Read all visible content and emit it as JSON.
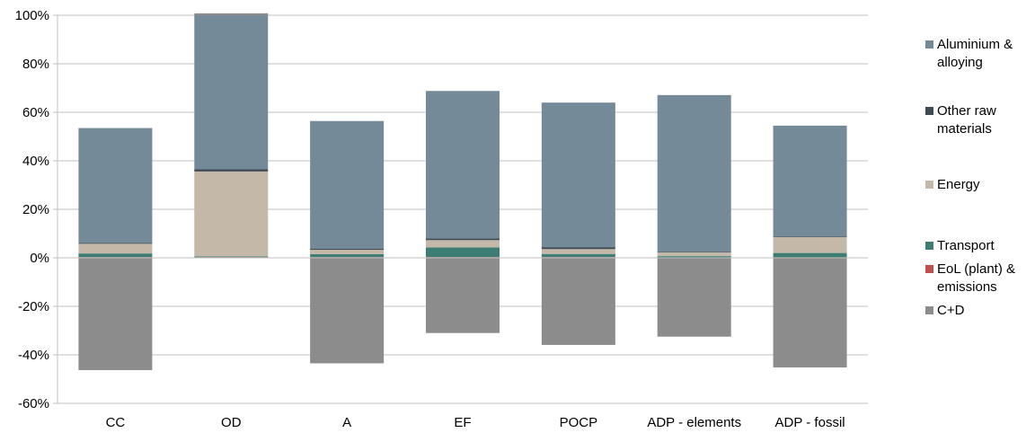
{
  "chart_data": {
    "type": "bar",
    "stacked": true,
    "categories": [
      "CC",
      "OD",
      "A",
      "EF",
      "POCP",
      "ADP - elements",
      "ADP - fossil"
    ],
    "ylim": [
      -60,
      100
    ],
    "yticks": [
      -60,
      -40,
      -20,
      0,
      20,
      40,
      60,
      80,
      100
    ],
    "ytick_labels": [
      "-60%",
      "-40%",
      "-20%",
      "0%",
      "20%",
      "40%",
      "60%",
      "80%",
      "100%"
    ],
    "grid": true,
    "legend_position": "right",
    "series": [
      {
        "name": "EoL (plant) & emissions",
        "color": "#c0504d",
        "values": [
          0.3,
          0.3,
          0.3,
          0.3,
          0.3,
          0.2,
          0.2
        ]
      },
      {
        "name": "Transport",
        "color": "#3e7d74",
        "values": [
          1.5,
          0.3,
          1.2,
          4.0,
          1.3,
          0.5,
          1.8
        ]
      },
      {
        "name": "Energy",
        "color": "#c4b8a8",
        "values": [
          4.0,
          35.0,
          1.8,
          3.0,
          2.0,
          1.5,
          6.5
        ]
      },
      {
        "name": "Other raw materials",
        "color": "#3f4a54",
        "values": [
          0.3,
          1.0,
          0.4,
          0.7,
          0.8,
          0.3,
          0.3
        ]
      },
      {
        "name": "Aluminium & alloying",
        "color": "#758a98",
        "values": [
          47.4,
          63.4,
          52.7,
          60.8,
          59.6,
          64.6,
          45.7
        ]
      },
      {
        "name": "C+D",
        "color": "#8c8c8c",
        "values": [
          -46.3,
          0.8,
          -43.5,
          -31.0,
          -35.9,
          -32.5,
          -45.2
        ]
      }
    ],
    "legend_order": [
      "Aluminium & alloying",
      "Other raw materials",
      "Energy",
      "Transport",
      "EoL (plant) & emissions",
      "C+D"
    ]
  },
  "legend": [
    {
      "lines": [
        "Aluminium &",
        "alloying"
      ],
      "color": "#758a98"
    },
    {
      "lines": [
        "Other raw",
        "materials"
      ],
      "color": "#3f4a54"
    },
    {
      "lines": [
        "Energy"
      ],
      "color": "#c4b8a8"
    },
    {
      "lines": [
        "Transport"
      ],
      "color": "#3e7d74"
    },
    {
      "lines": [
        "EoL (plant) &",
        "emissions"
      ],
      "color": "#c0504d"
    },
    {
      "lines": [
        "C+D"
      ],
      "color": "#8c8c8c"
    }
  ]
}
